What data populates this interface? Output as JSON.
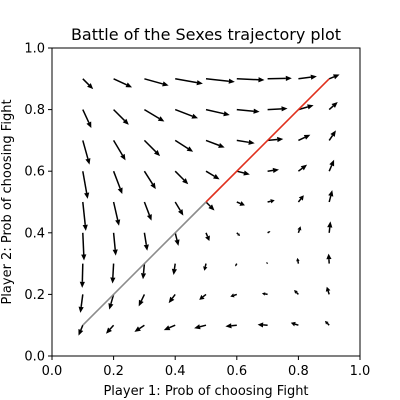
{
  "chart_data": {
    "type": "quiver",
    "title": "Battle of the Sexes trajectory plot",
    "xlabel": "Player 1: Prob of choosing Fight",
    "ylabel": "Player 2: Prob of choosing Fight",
    "xlim": [
      0,
      1
    ],
    "ylim": [
      0,
      1
    ],
    "xticks": [
      "0.0",
      "0.2",
      "0.4",
      "0.6",
      "0.8",
      "1.0"
    ],
    "yticks": [
      "0.0",
      "0.2",
      "0.4",
      "0.6",
      "0.8",
      "1.0"
    ],
    "grid": false,
    "vector_field": {
      "game": "battle_of_the_sexes",
      "payoff_player1": [
        [
          2,
          0
        ],
        [
          0,
          1
        ]
      ],
      "payoff_player2": [
        [
          1,
          0
        ],
        [
          0,
          2
        ]
      ],
      "x": [
        0.1,
        0.2,
        0.3,
        0.4,
        0.5,
        0.6,
        0.7,
        0.8,
        0.9
      ],
      "y": [
        0.1,
        0.2,
        0.3,
        0.4,
        0.5,
        0.6,
        0.7,
        0.8,
        0.9
      ],
      "color": "#000000"
    },
    "trajectories": [
      {
        "points": [
          [
            0.1,
            0.1
          ],
          [
            0.5,
            0.5
          ]
        ],
        "color": "#8c8c8c"
      },
      {
        "points": [
          [
            0.5,
            0.5
          ],
          [
            0.9,
            0.9
          ]
        ],
        "color": "#e0301e"
      }
    ]
  }
}
